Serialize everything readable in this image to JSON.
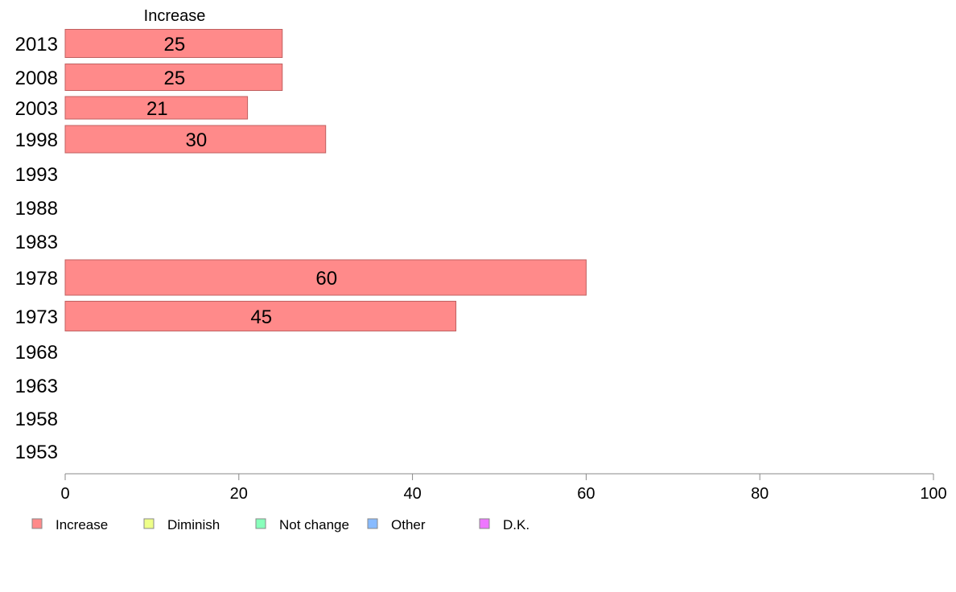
{
  "chart_data": {
    "type": "bar",
    "orientation": "horizontal",
    "series_heading": "Increase",
    "categories": [
      "2013",
      "2008",
      "2003",
      "1998",
      "1993",
      "1988",
      "1983",
      "1978",
      "1973",
      "1968",
      "1963",
      "1958",
      "1953"
    ],
    "series": [
      {
        "name": "Increase",
        "values": [
          25,
          25,
          21,
          30,
          null,
          null,
          null,
          60,
          45,
          null,
          null,
          null,
          null
        ]
      }
    ],
    "data_labels": [
      "25",
      "25",
      "21",
      "30",
      "",
      "",
      "",
      "60",
      "45",
      "",
      "",
      "",
      ""
    ],
    "xlim": [
      0,
      100
    ],
    "xticks": [
      0,
      20,
      40,
      60,
      80,
      100
    ],
    "xtick_labels": [
      "0",
      "20",
      "40",
      "60",
      "80",
      "100"
    ],
    "grid": false,
    "legend_position": "bottom-left",
    "legend": [
      {
        "label": "Increase",
        "color": "#ff8a8a"
      },
      {
        "label": "Diminish",
        "color": "#eeff88"
      },
      {
        "label": "Not change",
        "color": "#88ffbb"
      },
      {
        "label": "Other",
        "color": "#88bbff"
      },
      {
        "label": "D.K.",
        "color": "#ee77ff"
      }
    ],
    "colors": {
      "bar_fill": "#ff8a8a",
      "bar_stroke": "#c06060",
      "axis": "#888888"
    }
  }
}
